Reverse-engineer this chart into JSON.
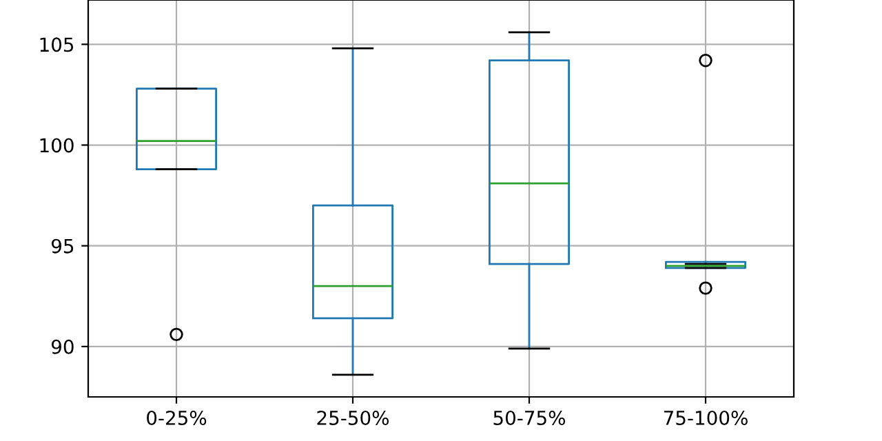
{
  "chart_data": {
    "type": "box",
    "categories": [
      "0-25%",
      "25-50%",
      "50-75%",
      "75-100%"
    ],
    "boxes": [
      {
        "low": 98.8,
        "q1": 98.8,
        "median": 100.2,
        "q3": 102.8,
        "high": 102.8,
        "outliers": [
          90.6
        ]
      },
      {
        "low": 88.6,
        "q1": 91.4,
        "median": 93.0,
        "q3": 97.0,
        "high": 104.8
      },
      {
        "low": 89.9,
        "q1": 94.1,
        "median": 98.1,
        "q3": 104.2,
        "high": 105.6
      },
      {
        "low": 93.9,
        "q1": 93.9,
        "median": 94.0,
        "q3": 94.2,
        "high": 94.1,
        "outliers": [
          104.2,
          92.9
        ]
      }
    ],
    "color": "#1f77b4",
    "ylim": [
      87.5,
      107.2
    ],
    "yticks": [
      90,
      95,
      100,
      105
    ],
    "grid": true
  }
}
